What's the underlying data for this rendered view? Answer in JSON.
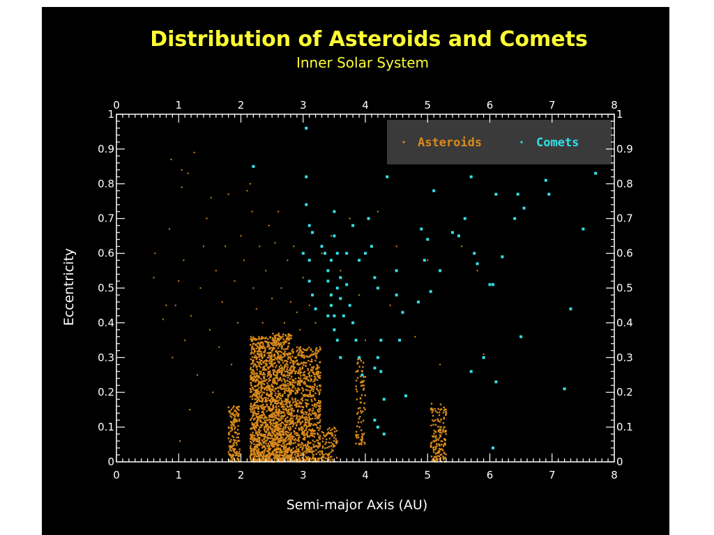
{
  "chart_data": {
    "type": "scatter",
    "title": "Distribution of Asteroids and Comets",
    "subtitle": "Inner Solar System",
    "xlabel": "Semi-major Axis (AU)",
    "ylabel": "Eccentricity",
    "xlim": [
      0,
      8
    ],
    "ylim": [
      0,
      1
    ],
    "x_ticks": [
      0,
      1,
      2,
      3,
      4,
      5,
      6,
      7,
      8
    ],
    "y_ticks": [
      0,
      0.1,
      0.2,
      0.3,
      0.4,
      0.5,
      0.6,
      0.7,
      0.8,
      0.9,
      1
    ],
    "y_tick_labels": [
      "0",
      "0.1",
      "0.2",
      "0.3",
      "0.4",
      "0.5",
      "0.6",
      "0.7",
      "0.8",
      "0.9",
      "1"
    ],
    "legend_position": "top-right",
    "grid": false,
    "colors": {
      "background": "#000000",
      "title": "#ffff33",
      "asteroids": "#d98a1a",
      "comets": "#33e0e8",
      "axes": "#ffffff",
      "legend_bg": "#3a3a3a"
    },
    "series": [
      {
        "name": "Asteroids",
        "color": "#d98a1a",
        "clusters": [
          {
            "x_range": [
              2.15,
              2.5
            ],
            "e_range": [
              0.0,
              0.36
            ],
            "count": 900
          },
          {
            "x_range": [
              2.5,
              2.82
            ],
            "e_range": [
              0.0,
              0.37
            ],
            "count": 900
          },
          {
            "x_range": [
              2.82,
              3.28
            ],
            "e_range": [
              0.0,
              0.33
            ],
            "count": 750
          },
          {
            "x_range": [
              1.8,
              1.98
            ],
            "e_range": [
              0.0,
              0.16
            ],
            "count": 160
          },
          {
            "x_range": [
              3.3,
              3.55
            ],
            "e_range": [
              0.0,
              0.1
            ],
            "count": 90
          },
          {
            "x_range": [
              3.85,
              4.0
            ],
            "e_range": [
              0.05,
              0.3
            ],
            "count": 80
          },
          {
            "x_range": [
              5.05,
              5.3
            ],
            "e_range": [
              0.0,
              0.17
            ],
            "count": 160
          }
        ],
        "points": [
          [
            0.6,
            0.53
          ],
          [
            0.62,
            0.6
          ],
          [
            0.75,
            0.41
          ],
          [
            0.8,
            0.45
          ],
          [
            0.85,
            0.67
          ],
          [
            0.88,
            0.87
          ],
          [
            0.9,
            0.3
          ],
          [
            0.95,
            0.45
          ],
          [
            1.0,
            0.52
          ],
          [
            1.02,
            0.06
          ],
          [
            1.05,
            0.84
          ],
          [
            1.05,
            0.79
          ],
          [
            1.08,
            0.58
          ],
          [
            1.1,
            0.35
          ],
          [
            1.15,
            0.83
          ],
          [
            1.18,
            0.15
          ],
          [
            1.2,
            0.42
          ],
          [
            1.25,
            0.89
          ],
          [
            1.3,
            0.25
          ],
          [
            1.35,
            0.5
          ],
          [
            1.4,
            0.62
          ],
          [
            1.45,
            0.7
          ],
          [
            1.5,
            0.38
          ],
          [
            1.52,
            0.76
          ],
          [
            1.55,
            0.2
          ],
          [
            1.6,
            0.55
          ],
          [
            1.65,
            0.33
          ],
          [
            1.7,
            0.46
          ],
          [
            1.75,
            0.62
          ],
          [
            1.8,
            0.77
          ],
          [
            1.85,
            0.28
          ],
          [
            1.9,
            0.52
          ],
          [
            1.95,
            0.4
          ],
          [
            2.0,
            0.65
          ],
          [
            2.05,
            0.58
          ],
          [
            2.1,
            0.78
          ],
          [
            2.15,
            0.8
          ],
          [
            2.18,
            0.72
          ],
          [
            2.2,
            0.5
          ],
          [
            2.25,
            0.44
          ],
          [
            2.3,
            0.62
          ],
          [
            2.35,
            0.4
          ],
          [
            2.4,
            0.55
          ],
          [
            2.45,
            0.68
          ],
          [
            2.5,
            0.47
          ],
          [
            2.55,
            0.63
          ],
          [
            2.6,
            0.72
          ],
          [
            2.65,
            0.5
          ],
          [
            2.7,
            0.4
          ],
          [
            2.75,
            0.58
          ],
          [
            2.8,
            0.46
          ],
          [
            2.85,
            0.62
          ],
          [
            2.9,
            0.43
          ],
          [
            2.95,
            0.38
          ],
          [
            3.0,
            0.53
          ],
          [
            3.1,
            0.45
          ],
          [
            3.2,
            0.4
          ],
          [
            3.3,
            0.6
          ],
          [
            3.45,
            0.65
          ],
          [
            3.6,
            0.55
          ],
          [
            3.75,
            0.7
          ],
          [
            3.9,
            0.48
          ],
          [
            4.0,
            0.35
          ],
          [
            4.2,
            0.72
          ],
          [
            4.4,
            0.45
          ],
          [
            4.5,
            0.62
          ],
          [
            4.8,
            0.36
          ],
          [
            5.0,
            0.58
          ],
          [
            5.2,
            0.28
          ],
          [
            5.8,
            0.55
          ],
          [
            5.9,
            0.31
          ],
          [
            5.55,
            0.62
          ]
        ]
      },
      {
        "name": "Comets",
        "color": "#33e0e8",
        "points": [
          [
            3.05,
            0.96
          ],
          [
            2.2,
            0.85
          ],
          [
            3.05,
            0.82
          ],
          [
            3.05,
            0.74
          ],
          [
            3.1,
            0.68
          ],
          [
            3.15,
            0.66
          ],
          [
            3.0,
            0.6
          ],
          [
            3.1,
            0.58
          ],
          [
            3.1,
            0.52
          ],
          [
            3.15,
            0.48
          ],
          [
            3.2,
            0.44
          ],
          [
            3.3,
            0.62
          ],
          [
            3.35,
            0.6
          ],
          [
            3.4,
            0.55
          ],
          [
            3.45,
            0.58
          ],
          [
            3.5,
            0.72
          ],
          [
            3.5,
            0.65
          ],
          [
            3.55,
            0.6
          ],
          [
            3.6,
            0.53
          ],
          [
            3.6,
            0.47
          ],
          [
            3.65,
            0.42
          ],
          [
            3.4,
            0.42
          ],
          [
            3.5,
            0.38
          ],
          [
            3.55,
            0.35
          ],
          [
            3.6,
            0.3
          ],
          [
            3.45,
            0.45
          ],
          [
            3.7,
            0.51
          ],
          [
            3.75,
            0.45
          ],
          [
            3.8,
            0.4
          ],
          [
            3.85,
            0.35
          ],
          [
            3.9,
            0.3
          ],
          [
            3.95,
            0.25
          ],
          [
            3.9,
            0.58
          ],
          [
            4.0,
            0.6
          ],
          [
            4.05,
            0.7
          ],
          [
            4.1,
            0.62
          ],
          [
            4.15,
            0.53
          ],
          [
            4.2,
            0.5
          ],
          [
            3.8,
            0.68
          ],
          [
            3.7,
            0.6
          ],
          [
            4.2,
            0.3
          ],
          [
            4.25,
            0.26
          ],
          [
            4.15,
            0.27
          ],
          [
            4.3,
            0.18
          ],
          [
            4.15,
            0.12
          ],
          [
            4.2,
            0.1
          ],
          [
            4.3,
            0.08
          ],
          [
            4.25,
            0.35
          ],
          [
            4.35,
            0.82
          ],
          [
            4.5,
            0.55
          ],
          [
            4.55,
            0.35
          ],
          [
            4.6,
            0.43
          ],
          [
            4.65,
            0.19
          ],
          [
            4.5,
            0.48
          ],
          [
            4.85,
            0.46
          ],
          [
            4.9,
            0.67
          ],
          [
            4.95,
            0.58
          ],
          [
            5.0,
            0.64
          ],
          [
            5.05,
            0.49
          ],
          [
            5.1,
            0.78
          ],
          [
            5.2,
            0.55
          ],
          [
            5.4,
            0.66
          ],
          [
            5.5,
            0.65
          ],
          [
            5.6,
            0.7
          ],
          [
            5.75,
            0.6
          ],
          [
            5.8,
            0.57
          ],
          [
            5.9,
            0.3
          ],
          [
            6.0,
            0.51
          ],
          [
            6.05,
            0.51
          ],
          [
            6.1,
            0.77
          ],
          [
            6.2,
            0.59
          ],
          [
            6.4,
            0.7
          ],
          [
            6.45,
            0.77
          ],
          [
            6.5,
            0.36
          ],
          [
            6.55,
            0.73
          ],
          [
            6.9,
            0.81
          ],
          [
            6.95,
            0.77
          ],
          [
            7.2,
            0.21
          ],
          [
            7.3,
            0.44
          ],
          [
            7.5,
            0.67
          ],
          [
            7.7,
            0.83
          ],
          [
            5.7,
            0.82
          ],
          [
            6.1,
            0.23
          ],
          [
            6.05,
            0.04
          ],
          [
            5.7,
            0.26
          ],
          [
            3.35,
            0.6
          ],
          [
            3.4,
            0.52
          ],
          [
            3.45,
            0.48
          ],
          [
            3.5,
            0.42
          ],
          [
            3.55,
            0.5
          ]
        ]
      }
    ]
  }
}
